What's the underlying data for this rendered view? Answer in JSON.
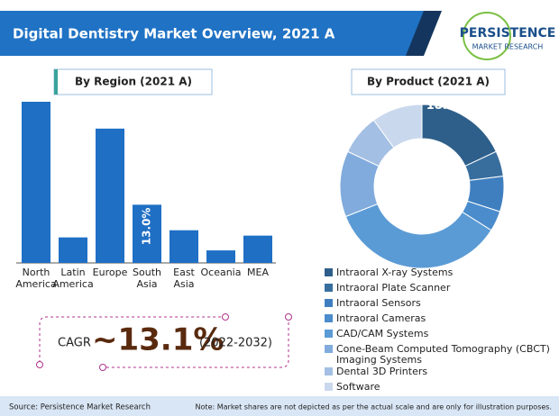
{
  "header": {
    "title": "Digital Dentistry Market Overview, 2021 A",
    "logo_top": "PERSISTENCE",
    "logo_bottom": "MARKET RESEARCH"
  },
  "chart_data": [
    {
      "type": "bar",
      "title": "By Region (2021 A)",
      "color": "#1f6fc5",
      "categories": [
        "North America",
        "Latin America",
        "Europe",
        "South Asia",
        "East Asia",
        "Oceania",
        "MEA"
      ],
      "values": [
        36,
        5.7,
        30,
        13,
        7.3,
        2.8,
        6.1
      ],
      "value_labels": [
        null,
        null,
        null,
        "13.0%",
        null,
        null,
        null
      ]
    },
    {
      "type": "donut",
      "title": "By Product (2021 A)",
      "series": [
        {
          "name": "Intraoral X-ray Systems",
          "color": "#2e5f8a",
          "values": [
            18
          ]
        },
        {
          "name": "Intraoral Plate Scanner",
          "color": "#386e9e",
          "values": [
            5
          ]
        },
        {
          "name": "Intraoral Sensors",
          "color": "#3f7fbf",
          "values": [
            7
          ]
        },
        {
          "name": "Intraoral Cameras",
          "color": "#4a8ccc",
          "values": [
            4
          ]
        },
        {
          "name": "CAD/CAM Systems",
          "color": "#5b9bd5",
          "values": [
            35
          ]
        },
        {
          "name": "Cone-Beam Computed Tomography (CBCT) Imaging Systems",
          "color": "#80abdc",
          "values": [
            13
          ]
        },
        {
          "name": "Dental 3D Printers",
          "color": "#a3bfe3",
          "values": [
            8
          ]
        },
        {
          "name": "Software",
          "color": "#cad8ee",
          "values": [
            10
          ]
        }
      ],
      "value_labels": [
        "18.0%",
        null,
        null,
        null,
        null,
        null,
        null,
        null
      ]
    }
  ],
  "cagr": {
    "prefix": "CAGR",
    "value": "~13.1%",
    "period": "(2022-2032)"
  },
  "footer": {
    "source": "Source: Persistence Market Research",
    "note": "Note: Market shares are not depicted as per the actual scale and are only for illustration purposes."
  }
}
